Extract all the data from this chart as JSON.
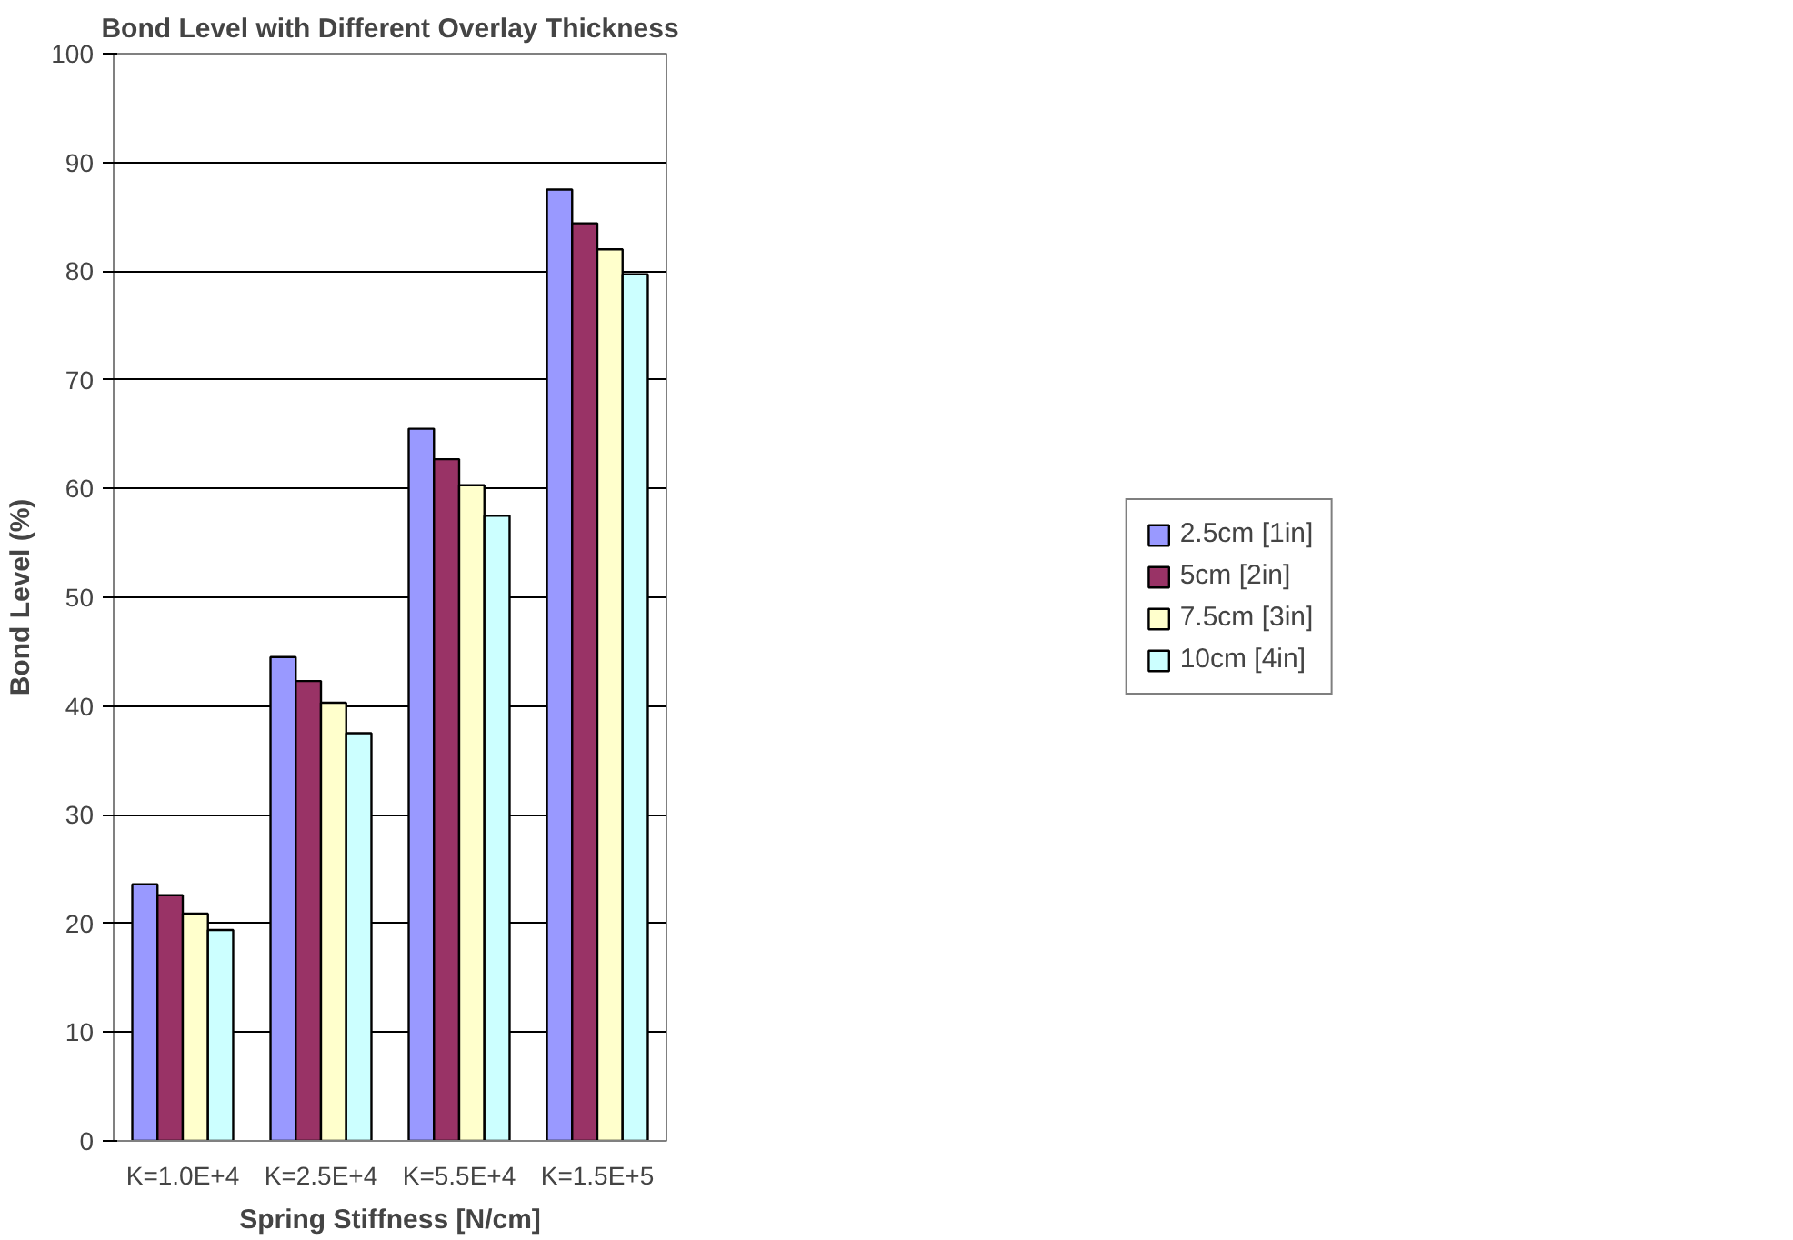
{
  "chart_data": {
    "type": "bar",
    "title": "Bond Level with Different Overlay Thickness",
    "xlabel": "Spring Stiffness [N/cm]",
    "ylabel": "Bond Level (%)",
    "categories": [
      "K=1.0E+4",
      "K=2.5E+4",
      "K=5.5E+4",
      "K=1.5E+5"
    ],
    "series": [
      {
        "name": "2.5cm [1in]",
        "color": "#9999ff",
        "values": [
          23.6,
          44.5,
          65.5,
          87.5
        ]
      },
      {
        "name": "5cm [2in]",
        "color": "#993366",
        "values": [
          22.6,
          42.3,
          62.7,
          84.4
        ]
      },
      {
        "name": "7.5cm [3in]",
        "color": "#ffffcc",
        "values": [
          20.9,
          40.3,
          60.3,
          82.0
        ]
      },
      {
        "name": "10cm [4in]",
        "color": "#ccffff",
        "values": [
          19.4,
          37.5,
          57.5,
          79.7
        ]
      }
    ],
    "ylim": [
      0,
      100
    ],
    "yticks": [
      0,
      10,
      20,
      30,
      40,
      50,
      60,
      70,
      80,
      90,
      100
    ],
    "grid": "y",
    "legend": "right"
  }
}
